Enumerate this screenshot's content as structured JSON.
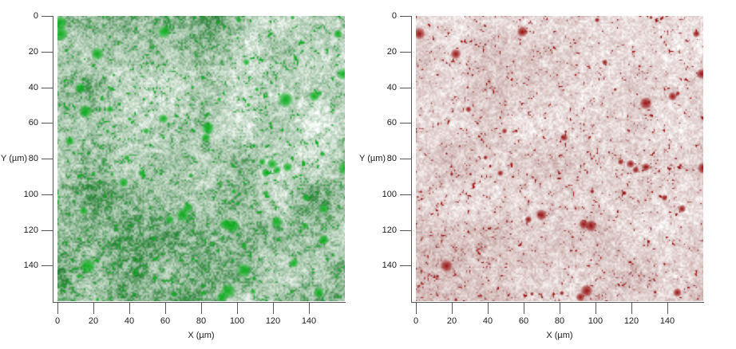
{
  "figure": {
    "background": "#ffffff",
    "description": "Two side-by-side microscopy element/fluorescence distribution maps with micrometer axes: green channel (left) and red channel (right) over the same field of view",
    "panels": [
      "green-channel-map",
      "red-channel-map"
    ]
  },
  "chart_data": [
    {
      "type": "heatmap",
      "channel": "green",
      "title": "",
      "xlabel": "X (µm)",
      "ylabel": "Y (µm)",
      "xlim": [
        0,
        160
      ],
      "ylim": [
        0,
        160
      ],
      "y_axis_inverted": true,
      "grid": false,
      "legend": null,
      "x_ticks": [
        0,
        20,
        40,
        60,
        80,
        100,
        120,
        140
      ],
      "y_ticks": [
        0,
        20,
        40,
        60,
        80,
        100,
        120,
        140
      ],
      "colors": {
        "background": "#ffffff",
        "mid": "#9fc2a4",
        "deep": "#1e7a2c",
        "bright": "#0db422",
        "blob": "#04af16"
      },
      "texture": {
        "seed": 11,
        "base_coverage": 0.52,
        "macro_amp": 0.42,
        "clump_amp": 0.38,
        "fine_amp": 0.42
      },
      "blobs": {
        "seed": 7,
        "count": 120,
        "keep_fraction": 1.0,
        "radius_scale": 1.0
      },
      "largest_blob_um": {
        "x": 127,
        "y": 47,
        "radius": 4.7
      },
      "description": "Dense mottled green particle map; denser dark-green upper-left corner and lower half, lighter whitish band across the upper third, many bright green particles 1-6 µm across"
    },
    {
      "type": "heatmap",
      "channel": "red",
      "title": "",
      "xlabel": "X (µm)",
      "ylabel": "Y (µm)",
      "xlim": [
        0,
        160
      ],
      "ylim": [
        0,
        160
      ],
      "y_axis_inverted": true,
      "grid": false,
      "legend": null,
      "x_ticks": [
        0,
        20,
        40,
        60,
        80,
        100,
        120,
        140
      ],
      "y_ticks": [
        0,
        20,
        40,
        60,
        80,
        100,
        120,
        140
      ],
      "colors": {
        "background": "#ffffff",
        "mid": "#cfb4b2",
        "deep": "#8f2020",
        "bright": "#a00f0f",
        "blob": "#940606"
      },
      "texture": {
        "seed": 29,
        "base_coverage": 0.34,
        "macro_amp": 0.26,
        "clump_amp": 0.3,
        "fine_amp": 0.38
      },
      "blobs": {
        "seed": 7,
        "count": 120,
        "keep_fraction": 0.7,
        "radius_scale": 0.82
      },
      "largest_blob_um": {
        "x": 128,
        "y": 49,
        "radius": 4.5
      },
      "description": "Sparse dark-red particle map on near-white background; scattered red particles colocalized with the green map, slightly denser along the left edge and bottom"
    }
  ]
}
